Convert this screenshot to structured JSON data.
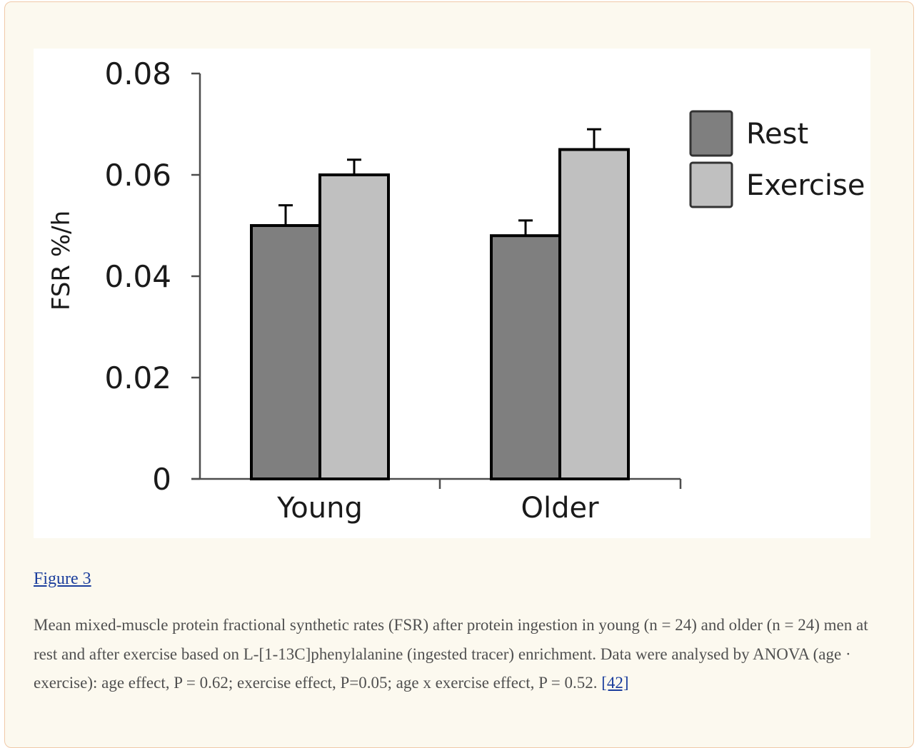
{
  "chart_data": {
    "type": "bar",
    "categories": [
      "Young",
      "Older"
    ],
    "series": [
      {
        "name": "Rest",
        "values": [
          0.05,
          0.048
        ],
        "errors": [
          0.004,
          0.003
        ],
        "color": "#7f7f7f"
      },
      {
        "name": "Exercise",
        "values": [
          0.06,
          0.065
        ],
        "errors": [
          0.003,
          0.004
        ],
        "color": "#c0c0c0"
      }
    ],
    "ylabel": "FSR %/h",
    "xlabel": "",
    "ylim": [
      0,
      0.08
    ],
    "yticks": [
      "0",
      "0.02",
      "0.04",
      "0.06",
      "0.08"
    ],
    "legend_position": "top-right",
    "grid": false
  },
  "caption": {
    "figure_link": "Figure 3",
    "text": "Mean mixed-muscle protein fractional synthetic rates (FSR) after protein ingestion in young (n = 24) and older (n = 24) men at rest and after exercise based on L-[1-13C]phenylalanine (ingested tracer) enrichment. Data were analysed by ANOVA (age · exercise): age effect, P = 0.62; exercise effect, P=0.05; age x exercise effect, P = 0.52.",
    "reference_link": "[42]"
  },
  "colors": {
    "panel_bg": "#fcf9ef",
    "panel_border": "#f0c9a8",
    "link": "#1a3d9c",
    "caption_text": "#505050"
  }
}
